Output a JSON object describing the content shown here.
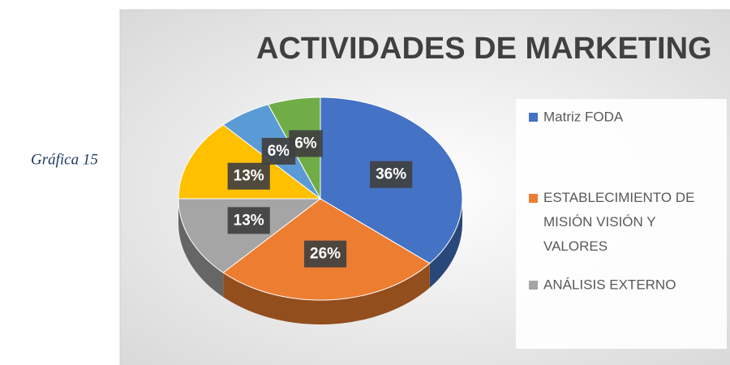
{
  "caption": "Gráfica 15",
  "chart_data": {
    "type": "pie",
    "title": "ACTIVIDADES DE MARKETING",
    "categories": [
      "Matriz FODA",
      "ESTABLECIMIENTO DE MISIÓN VISIÓN Y VALORES",
      "ANÁLISIS EXTERNO",
      null,
      null,
      null
    ],
    "values": [
      36,
      26,
      13,
      13,
      6,
      6
    ],
    "value_labels": [
      "36%",
      "26%",
      "13%",
      "13%",
      "6%",
      "6%"
    ],
    "colors": [
      "#4472c4",
      "#ed7d31",
      "#a5a5a5",
      "#ffc000",
      "#5b9bd5",
      "#70ad47"
    ],
    "legend": "right"
  }
}
